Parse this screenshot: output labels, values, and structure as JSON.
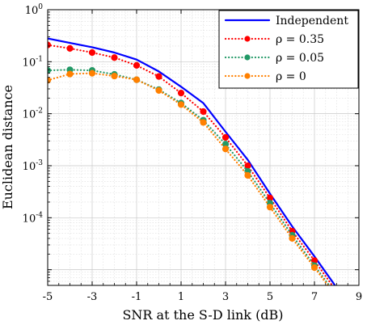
{
  "chart_data": {
    "type": "line",
    "title": "",
    "xlabel": "SNR at the S-D link (dB)",
    "ylabel": "Euclidean distance",
    "xlim": [
      -5,
      9
    ],
    "ylim": [
      5e-06,
      1
    ],
    "yscale": "log",
    "grid": true,
    "minor_grid": true,
    "legend_position": "top-right",
    "xticks": [
      -5,
      -3,
      -1,
      1,
      3,
      5,
      7,
      9
    ],
    "xtick_labels": [
      "-5",
      "-3",
      "-1",
      "1",
      "3",
      "5",
      "7",
      "9"
    ],
    "yticks": [
      {
        "value": 1,
        "base": "10",
        "exp": "0"
      },
      {
        "value": 0.1,
        "base": "10",
        "exp": "-1"
      },
      {
        "value": 0.01,
        "base": "10",
        "exp": "-2"
      },
      {
        "value": 0.001,
        "base": "10",
        "exp": "-3"
      },
      {
        "value": 0.0001,
        "base": "10",
        "exp": "-4"
      }
    ],
    "series": [
      {
        "name": "Independent",
        "color": "#0000ff",
        "style": "solid",
        "marker": false,
        "x": [
          -5,
          -4,
          -3,
          -2,
          -1,
          0,
          1,
          2,
          3,
          4,
          5,
          6,
          7,
          8
        ],
        "y": [
          0.28,
          0.23,
          0.19,
          0.15,
          0.11,
          0.065,
          0.033,
          0.016,
          0.0045,
          0.0013,
          0.00029,
          6.8e-05,
          1.8e-05,
          4.5e-06
        ]
      },
      {
        "name": "ρ = 0.35",
        "color": "#ff0000",
        "style": "dotted",
        "marker": true,
        "x": [
          -5,
          -4,
          -3,
          -2,
          -1,
          0,
          1,
          2,
          3,
          4,
          5,
          6,
          7,
          8
        ],
        "y": [
          0.21,
          0.18,
          0.15,
          0.12,
          0.085,
          0.052,
          0.025,
          0.011,
          0.0035,
          0.001,
          0.00024,
          5.5e-05,
          1.5e-05,
          3.8e-06
        ]
      },
      {
        "name": "ρ = 0.05",
        "color": "#229966",
        "style": "dotted",
        "marker": true,
        "x": [
          -5,
          -4,
          -3,
          -2,
          -1,
          0,
          1,
          2,
          3,
          4,
          5,
          6,
          7,
          8
        ],
        "y": [
          0.068,
          0.07,
          0.068,
          0.057,
          0.045,
          0.029,
          0.016,
          0.0075,
          0.0026,
          0.00078,
          0.00019,
          4.6e-05,
          1.2e-05,
          3.2e-06
        ]
      },
      {
        "name": "ρ = 0",
        "color": "#ff8000",
        "style": "dotted",
        "marker": true,
        "x": [
          -5,
          -4,
          -3,
          -2,
          -1,
          0,
          1,
          2,
          3,
          4,
          5,
          6,
          7,
          8
        ],
        "y": [
          0.044,
          0.058,
          0.06,
          0.053,
          0.045,
          0.028,
          0.015,
          0.0068,
          0.0021,
          0.00065,
          0.00016,
          4e-05,
          1.1e-05,
          3e-06
        ]
      }
    ]
  }
}
